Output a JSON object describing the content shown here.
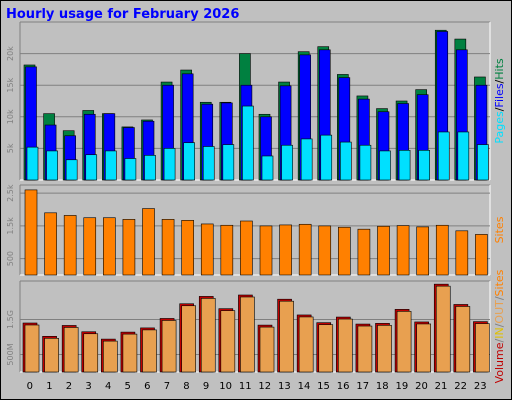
{
  "title": "Hourly usage for February 2026",
  "colors": {
    "background": "#c0c0c0",
    "hits": "#008040",
    "files": "#0000ff",
    "pages": "#00e0ff",
    "sites": "#ff8000",
    "volume": "#e8a050",
    "in": "#e0c000",
    "out": "#c00000",
    "title": "#0000ff"
  },
  "chart_data": [
    {
      "type": "bar",
      "categories": [
        "0",
        "1",
        "2",
        "3",
        "4",
        "5",
        "6",
        "7",
        "8",
        "9",
        "10",
        "11",
        "12",
        "13",
        "14",
        "15",
        "16",
        "17",
        "18",
        "19",
        "20",
        "21",
        "22",
        "23"
      ],
      "series": [
        {
          "name": "Hits",
          "values": [
            18200,
            10500,
            7800,
            11000,
            10500,
            8400,
            9500,
            15500,
            17400,
            12300,
            12300,
            20000,
            10400,
            15500,
            20300,
            21100,
            16700,
            13300,
            11300,
            12500,
            14300,
            23700,
            22300,
            16300
          ]
        },
        {
          "name": "Files",
          "values": [
            17900,
            8700,
            7000,
            10400,
            10500,
            8300,
            9300,
            15000,
            16800,
            12000,
            12200,
            15000,
            10000,
            14900,
            19800,
            20600,
            16200,
            12800,
            10800,
            12100,
            13500,
            23500,
            20600,
            15000
          ]
        },
        {
          "name": "Pages",
          "values": [
            5200,
            4600,
            3200,
            4000,
            4600,
            3400,
            3900,
            5000,
            5900,
            5300,
            5600,
            11700,
            3800,
            5500,
            6500,
            7100,
            6000,
            5500,
            4600,
            4700,
            4700,
            7600,
            7600,
            5600
          ]
        }
      ],
      "yticks": [
        "5k",
        "10k",
        "15k",
        "20k"
      ],
      "ylim": [
        0,
        25000
      ],
      "legend": [
        {
          "text": "Pages",
          "color": "#00e0ff"
        },
        {
          "text": "/",
          "color": "#000000"
        },
        {
          "text": "Files",
          "color": "#0000ff"
        },
        {
          "text": "/",
          "color": "#000000"
        },
        {
          "text": "Hits",
          "color": "#008040"
        }
      ]
    },
    {
      "type": "bar",
      "categories": [
        "0",
        "1",
        "2",
        "3",
        "4",
        "5",
        "6",
        "7",
        "8",
        "9",
        "10",
        "11",
        "12",
        "13",
        "14",
        "15",
        "16",
        "17",
        "18",
        "19",
        "20",
        "21",
        "22",
        "23"
      ],
      "series": [
        {
          "name": "Sites",
          "values": [
            2600,
            1900,
            1820,
            1750,
            1750,
            1700,
            2030,
            1700,
            1670,
            1560,
            1520,
            1650,
            1500,
            1530,
            1550,
            1500,
            1460,
            1400,
            1490,
            1510,
            1470,
            1520,
            1350,
            1240
          ]
        }
      ],
      "yticks": [
        "500",
        "1.5k",
        "2.5k"
      ],
      "ylim": [
        0,
        2750
      ],
      "legend": [
        {
          "text": "Sites",
          "color": "#ff8000"
        }
      ]
    },
    {
      "type": "bar",
      "categories": [
        "0",
        "1",
        "2",
        "3",
        "4",
        "5",
        "6",
        "7",
        "8",
        "9",
        "10",
        "11",
        "12",
        "13",
        "14",
        "15",
        "16",
        "17",
        "18",
        "19",
        "20",
        "21",
        "22",
        "23"
      ],
      "series": [
        {
          "name": "Volume",
          "values": [
            1400,
            1020,
            1330,
            1150,
            940,
            1140,
            1260,
            1530,
            1950,
            2160,
            1810,
            2200,
            1340,
            2080,
            1630,
            1410,
            1570,
            1370,
            1390,
            1790,
            1430,
            2510,
            1930,
            1440
          ]
        }
      ],
      "yticks": [
        "500M",
        "1.5G"
      ],
      "ylim": [
        0,
        2600
      ],
      "legend": [
        {
          "text": "Volume",
          "color": "#c00000"
        },
        {
          "text": "/",
          "color": "#808080"
        },
        {
          "text": "IN",
          "color": "#e0c000"
        },
        {
          "text": "/",
          "color": "#808080"
        },
        {
          "text": "OUT",
          "color": "#e8a050"
        },
        {
          "text": "/",
          "color": "#808080"
        },
        {
          "text": "Sites",
          "color": "#ff8000"
        }
      ]
    }
  ]
}
